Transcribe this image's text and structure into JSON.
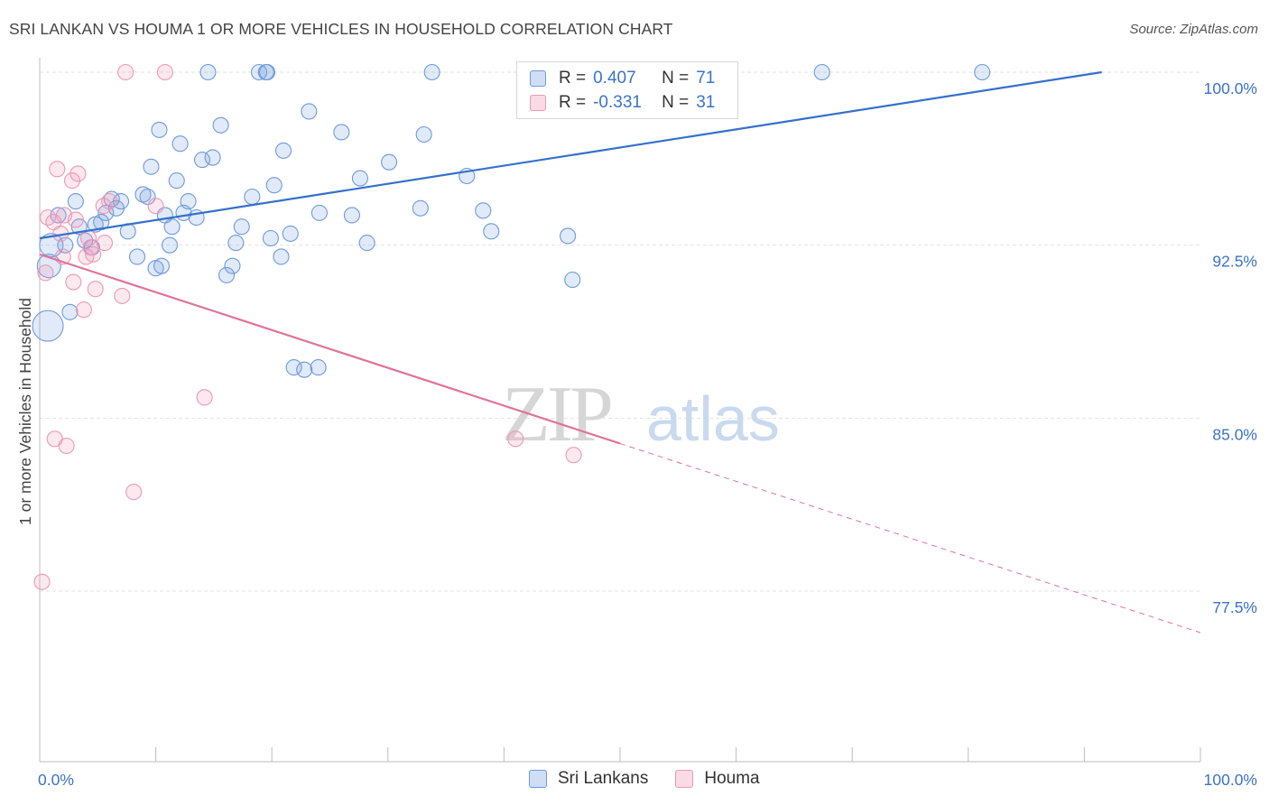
{
  "title": "SRI LANKAN VS HOUMA 1 OR MORE VEHICLES IN HOUSEHOLD CORRELATION CHART",
  "source": "Source: ZipAtlas.com",
  "watermark": {
    "zip": "ZIP",
    "atlas": "atlas"
  },
  "colors": {
    "sri_fill": "rgba(120,160,225,0.22)",
    "sri_stroke": "#6e9ad9",
    "sri_line": "#3470c9",
    "houma_fill": "rgba(240,150,180,0.22)",
    "houma_stroke": "#eb99b6",
    "houma_line": "#e0739a",
    "axis_text": "#3b72c8",
    "grid": "#e2e2e2"
  },
  "legend": {
    "rows": [
      {
        "r_label": "R =",
        "r_value": "0.407",
        "n_label": "N =",
        "n_value": "71"
      },
      {
        "r_label": "R =",
        "r_value": "-0.331",
        "n_label": "N =",
        "n_value": "31"
      }
    ]
  },
  "series_labels": [
    "Sri Lankans",
    "Houma"
  ],
  "chart_data": {
    "type": "scatter",
    "title": "SRI LANKAN VS HOUMA 1 OR MORE VEHICLES IN HOUSEHOLD CORRELATION CHART",
    "xlabel": "",
    "ylabel": "1 or more Vehicles in Household",
    "xlim": [
      0,
      100
    ],
    "ylim": [
      70.5,
      100.8
    ],
    "x_tick_labels": [
      {
        "value": 0,
        "label": "0.0%"
      },
      {
        "value": 100,
        "label": "100.0%"
      }
    ],
    "y_tick_labels": [
      {
        "value": 100,
        "label": "100.0%"
      },
      {
        "value": 92.5,
        "label": "92.5%"
      },
      {
        "value": 85,
        "label": "85.0%"
      },
      {
        "value": 77.5,
        "label": "77.5%"
      }
    ],
    "grid": true,
    "series": [
      {
        "name": "Sri Lankans",
        "points": [
          [
            0.7,
            89.0,
            3
          ],
          [
            0.8,
            91.6,
            2
          ],
          [
            1.0,
            92.5,
            2
          ],
          [
            1.6,
            93.8,
            1
          ],
          [
            2.2,
            92.5,
            1
          ],
          [
            2.6,
            89.6,
            1
          ],
          [
            3.1,
            94.4,
            1
          ],
          [
            3.4,
            93.3,
            1
          ],
          [
            3.9,
            92.7,
            1
          ],
          [
            4.5,
            92.4,
            1
          ],
          [
            4.8,
            93.4,
            1
          ],
          [
            5.3,
            93.5,
            1
          ],
          [
            5.7,
            93.9,
            1
          ],
          [
            6.2,
            94.5,
            1
          ],
          [
            6.6,
            94.1,
            1
          ],
          [
            7.0,
            94.4,
            1
          ],
          [
            7.6,
            93.1,
            1
          ],
          [
            8.4,
            92.0,
            1
          ],
          [
            8.9,
            94.7,
            1
          ],
          [
            9.3,
            94.6,
            1
          ],
          [
            9.6,
            95.9,
            1
          ],
          [
            10.0,
            91.5,
            1
          ],
          [
            10.3,
            97.5,
            1
          ],
          [
            10.5,
            91.6,
            1
          ],
          [
            10.8,
            93.8,
            1
          ],
          [
            11.2,
            92.5,
            1
          ],
          [
            11.4,
            93.3,
            1
          ],
          [
            11.8,
            95.3,
            1
          ],
          [
            12.1,
            96.9,
            1
          ],
          [
            12.4,
            93.9,
            1
          ],
          [
            12.8,
            94.4,
            1
          ],
          [
            13.5,
            93.7,
            1
          ],
          [
            14.0,
            96.2,
            1
          ],
          [
            14.5,
            100.0,
            1
          ],
          [
            14.9,
            96.3,
            1
          ],
          [
            15.6,
            97.7,
            1
          ],
          [
            16.1,
            91.2,
            1
          ],
          [
            16.6,
            91.6,
            1
          ],
          [
            16.9,
            92.6,
            1
          ],
          [
            17.4,
            93.3,
            1
          ],
          [
            18.3,
            94.6,
            1
          ],
          [
            18.9,
            100.0,
            1
          ],
          [
            19.5,
            100.0,
            1
          ],
          [
            19.6,
            100.0,
            1
          ],
          [
            19.9,
            92.8,
            1
          ],
          [
            20.2,
            95.1,
            1
          ],
          [
            20.8,
            92.0,
            1
          ],
          [
            21.0,
            96.6,
            1
          ],
          [
            21.6,
            93.0,
            1
          ],
          [
            21.9,
            87.2,
            1
          ],
          [
            22.8,
            87.1,
            1
          ],
          [
            23.2,
            98.3,
            1
          ],
          [
            24.0,
            87.2,
            1
          ],
          [
            24.1,
            93.9,
            1
          ],
          [
            26.0,
            97.4,
            1
          ],
          [
            26.9,
            93.8,
            1
          ],
          [
            27.6,
            95.4,
            1
          ],
          [
            28.2,
            92.6,
            1
          ],
          [
            30.1,
            96.1,
            1
          ],
          [
            32.8,
            94.1,
            1
          ],
          [
            33.1,
            97.3,
            1
          ],
          [
            33.8,
            100.0,
            1
          ],
          [
            36.8,
            95.5,
            1
          ],
          [
            38.2,
            94.0,
            1
          ],
          [
            38.9,
            93.1,
            1
          ],
          [
            41.8,
            100.0,
            1
          ],
          [
            45.0,
            100.0,
            1
          ],
          [
            45.5,
            92.9,
            1
          ],
          [
            45.9,
            91.0,
            1
          ],
          [
            67.4,
            100.0,
            1
          ],
          [
            81.2,
            100.0,
            1
          ]
        ]
      },
      {
        "name": "Houma",
        "points": [
          [
            0.2,
            77.9,
            1
          ],
          [
            0.5,
            91.3,
            1
          ],
          [
            0.7,
            93.7,
            1
          ],
          [
            1.2,
            93.5,
            1
          ],
          [
            1.3,
            84.1,
            1
          ],
          [
            1.5,
            95.8,
            1
          ],
          [
            1.8,
            93.0,
            1
          ],
          [
            2.0,
            92.0,
            1
          ],
          [
            2.1,
            93.8,
            1
          ],
          [
            2.3,
            83.8,
            1
          ],
          [
            2.8,
            95.3,
            1
          ],
          [
            2.9,
            90.9,
            1
          ],
          [
            3.1,
            93.6,
            1
          ],
          [
            3.3,
            95.6,
            1
          ],
          [
            3.8,
            89.7,
            1
          ],
          [
            4.0,
            92.0,
            1
          ],
          [
            4.2,
            92.8,
            1
          ],
          [
            4.4,
            92.4,
            1
          ],
          [
            4.6,
            92.1,
            1
          ],
          [
            4.8,
            90.6,
            1
          ],
          [
            5.5,
            94.2,
            1
          ],
          [
            5.6,
            92.6,
            1
          ],
          [
            6.0,
            94.4,
            1
          ],
          [
            7.1,
            90.3,
            1
          ],
          [
            7.4,
            100.0,
            1
          ],
          [
            8.1,
            81.8,
            1
          ],
          [
            10.0,
            94.2,
            1
          ],
          [
            10.8,
            100.0,
            1
          ],
          [
            14.2,
            85.9,
            1
          ],
          [
            41.0,
            84.1,
            1
          ],
          [
            46.0,
            83.4,
            1
          ]
        ]
      }
    ],
    "trend_lines": [
      {
        "series": "Sri Lankans",
        "from": [
          0,
          92.8
        ],
        "to": [
          91.5,
          100.0
        ],
        "style": "solid"
      },
      {
        "series": "Houma",
        "from": [
          0,
          92.1
        ],
        "to": [
          50.0,
          83.9
        ],
        "style": "solid"
      },
      {
        "series": "Houma",
        "from": [
          50.0,
          83.9
        ],
        "to": [
          100,
          75.7
        ],
        "style": "dashed"
      }
    ]
  }
}
